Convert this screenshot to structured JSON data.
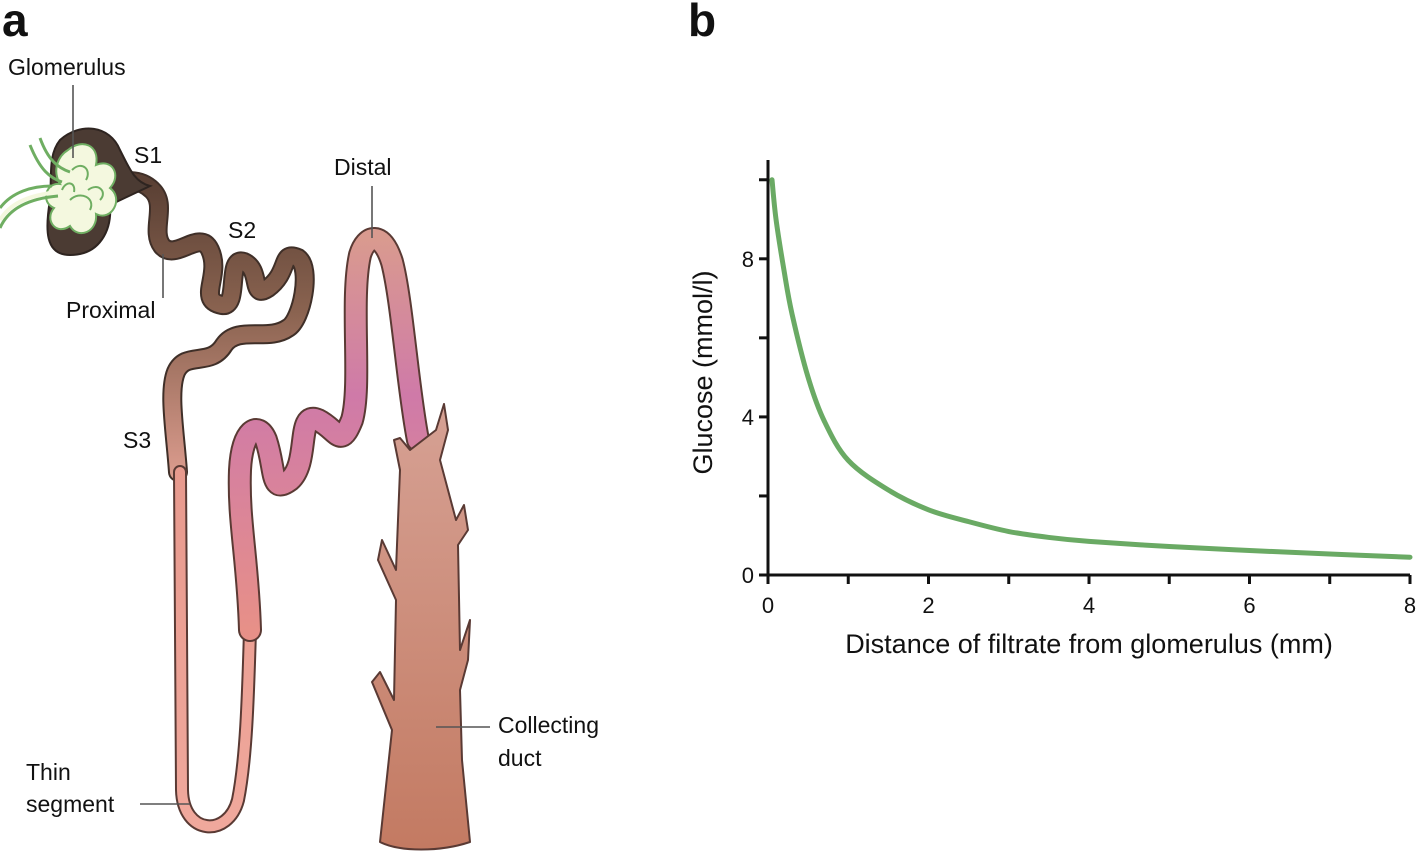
{
  "panel_a": {
    "letter": "a",
    "labels": {
      "glomerulus": "Glomerulus",
      "s1": "S1",
      "s2": "S2",
      "proximal": "Proximal",
      "distal": "Distal",
      "s3": "S3",
      "thin_line1": "Thin",
      "thin_line2": "segment",
      "collecting_line1": "Collecting",
      "collecting_line2": "duct"
    },
    "colors": {
      "glomerulus_dark": "#4b3b33",
      "capillary_fill": "#f4f8df",
      "capillary_stroke": "#6fae62",
      "proximal_tubule": "#6e4e3e",
      "thin_segment": "#e8998e",
      "distal_tubule": "#cf7fa8",
      "collecting_duct": "#c8856f"
    }
  },
  "panel_b": {
    "letter": "b",
    "chart_data": {
      "type": "line",
      "xlabel": "Distance of filtrate from glomerulus (mm)",
      "ylabel": "Glucose (mmol/l)",
      "xlim": [
        0,
        8
      ],
      "ylim": [
        0,
        10.5
      ],
      "xticks": [
        0,
        2,
        4,
        6,
        8
      ],
      "yticks": [
        0,
        4,
        8
      ],
      "grid": false,
      "series": [
        {
          "color": "#6aaa64",
          "x": [
            0.05,
            0.1,
            0.2,
            0.3,
            0.5,
            0.7,
            1.0,
            1.5,
            2.0,
            2.5,
            3.0,
            3.5,
            4.0,
            5.0,
            6.0,
            7.0,
            8.0
          ],
          "y": [
            10.0,
            9.0,
            7.7,
            6.6,
            5.0,
            3.9,
            2.9,
            2.15,
            1.65,
            1.35,
            1.1,
            0.95,
            0.85,
            0.72,
            0.62,
            0.53,
            0.45
          ]
        }
      ]
    }
  }
}
